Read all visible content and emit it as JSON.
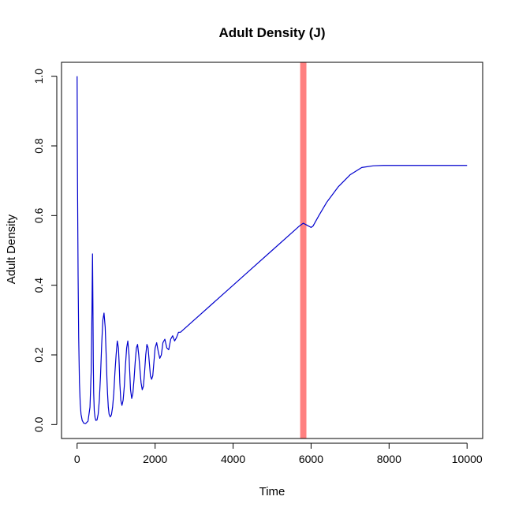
{
  "chart_data": {
    "type": "line",
    "title": "Adult Density (J)",
    "xlabel": "Time",
    "ylabel": "Adult Density",
    "xlim": [
      -400,
      10400
    ],
    "ylim": [
      -0.04,
      1.04
    ],
    "x_ticks": [
      0,
      2000,
      4000,
      6000,
      8000,
      10000
    ],
    "x_tick_labels": [
      "0",
      "2000",
      "4000",
      "6000",
      "8000",
      "10000"
    ],
    "y_ticks": [
      0.0,
      0.2,
      0.4,
      0.6,
      0.8,
      1.0
    ],
    "y_tick_labels": [
      "0.0",
      "0.2",
      "0.4",
      "0.6",
      "0.8",
      "1.0"
    ],
    "grid": false,
    "legend": "none",
    "band": {
      "x_start": 5720,
      "x_end": 5880,
      "color": "#ff8080"
    },
    "series": [
      {
        "color": "#0000cd",
        "x": [
          0,
          10,
          25,
          40,
          60,
          80,
          100,
          130,
          170,
          220,
          280,
          330,
          360,
          380,
          395,
          405,
          415,
          425,
          440,
          460,
          480,
          510,
          540,
          570,
          600,
          630,
          660,
          690,
          720,
          745,
          765,
          780,
          800,
          820,
          850,
          880,
          910,
          940,
          970,
          1000,
          1030,
          1060,
          1080,
          1095,
          1120,
          1150,
          1180,
          1210,
          1240,
          1270,
          1300,
          1330,
          1350,
          1370,
          1400,
          1430,
          1460,
          1490,
          1520,
          1550,
          1580,
          1610,
          1640,
          1670,
          1700,
          1730,
          1760,
          1790,
          1820,
          1850,
          1880,
          1910,
          1940,
          1970,
          2000,
          2040,
          2080,
          2120,
          2160,
          2200,
          2250,
          2300,
          2350,
          2400,
          2450,
          2500,
          2550,
          2600,
          2650,
          2700,
          2800,
          3000,
          3500,
          4000,
          4500,
          5000,
          5500,
          5700,
          5800,
          5900,
          6000,
          6050,
          6100,
          6200,
          6400,
          6700,
          7000,
          7300,
          7600,
          7850,
          8000,
          9000,
          10000
        ],
        "y": [
          1.0,
          0.7,
          0.43,
          0.25,
          0.12,
          0.06,
          0.03,
          0.012,
          0.004,
          0.003,
          0.01,
          0.05,
          0.15,
          0.32,
          0.49,
          0.35,
          0.18,
          0.09,
          0.04,
          0.02,
          0.012,
          0.013,
          0.03,
          0.07,
          0.14,
          0.23,
          0.3,
          0.32,
          0.28,
          0.2,
          0.13,
          0.09,
          0.05,
          0.03,
          0.022,
          0.028,
          0.05,
          0.09,
          0.15,
          0.2,
          0.24,
          0.22,
          0.17,
          0.12,
          0.07,
          0.055,
          0.07,
          0.11,
          0.17,
          0.22,
          0.24,
          0.2,
          0.15,
          0.1,
          0.075,
          0.09,
          0.13,
          0.18,
          0.22,
          0.23,
          0.2,
          0.16,
          0.12,
          0.1,
          0.11,
          0.15,
          0.2,
          0.23,
          0.22,
          0.18,
          0.14,
          0.13,
          0.14,
          0.18,
          0.22,
          0.235,
          0.21,
          0.19,
          0.2,
          0.235,
          0.245,
          0.22,
          0.215,
          0.245,
          0.255,
          0.24,
          0.25,
          0.265,
          0.265,
          0.27,
          0.28,
          0.3,
          0.35,
          0.4,
          0.45,
          0.5,
          0.55,
          0.57,
          0.578,
          0.572,
          0.566,
          0.57,
          0.58,
          0.6,
          0.638,
          0.683,
          0.717,
          0.738,
          0.743,
          0.744,
          0.744,
          0.744,
          0.744
        ]
      }
    ]
  }
}
